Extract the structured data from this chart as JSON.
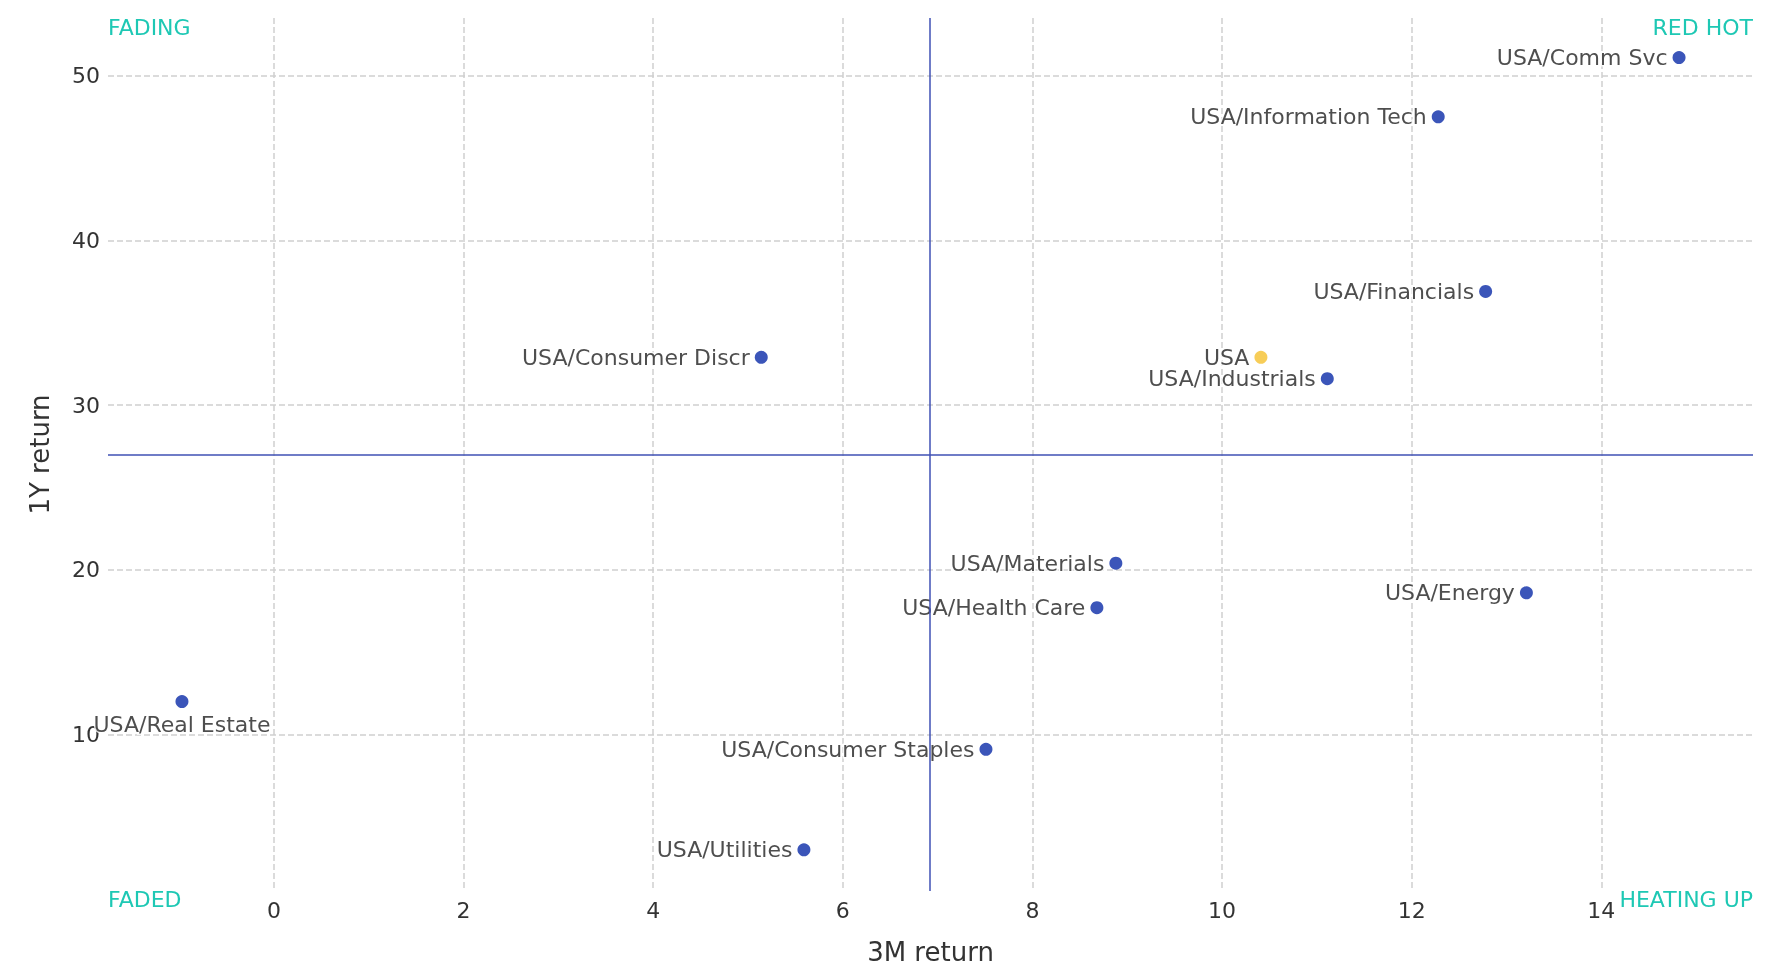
{
  "chart_data": {
    "type": "scatter",
    "xlabel": "3M return",
    "ylabel": "1Y return",
    "xlim": [
      -1.75,
      15.6
    ],
    "xticks": [
      0,
      2,
      4,
      6,
      8,
      10,
      12,
      14
    ],
    "ylim": [
      0.5,
      53.5
    ],
    "yticks": [
      10,
      20,
      30,
      40,
      50
    ],
    "grid": true,
    "marker": "circle",
    "legend": false,
    "series": [
      {
        "name": "USA/Comm Svc",
        "color": "#0a2aa8",
        "x": [
          14.82
        ],
        "values": [
          51.1
        ]
      },
      {
        "name": "USA/Information Tech",
        "color": "#0a2aa8",
        "x": [
          12.28
        ],
        "values": [
          47.5
        ]
      },
      {
        "name": "USA/Financials",
        "color": "#0a2aa8",
        "x": [
          12.78
        ],
        "values": [
          36.9
        ]
      },
      {
        "name": "USA",
        "color": "#f5c12e",
        "x": [
          10.41
        ],
        "values": [
          32.9
        ]
      },
      {
        "name": "USA/Industrials",
        "color": "#0a2aa8",
        "x": [
          11.11
        ],
        "values": [
          31.6
        ]
      },
      {
        "name": "USA/Consumer Discr",
        "color": "#0a2aa8",
        "x": [
          5.14
        ],
        "values": [
          32.9
        ]
      },
      {
        "name": "USA/Materials",
        "color": "#0a2aa8",
        "x": [
          8.88
        ],
        "values": [
          20.4
        ]
      },
      {
        "name": "USA/Health Care",
        "color": "#0a2aa8",
        "x": [
          8.68
        ],
        "values": [
          17.7
        ]
      },
      {
        "name": "USA/Energy",
        "color": "#0a2aa8",
        "x": [
          13.21
        ],
        "values": [
          18.6
        ]
      },
      {
        "name": "USA/Real Estate",
        "color": "#0a2aa8",
        "x": [
          -0.97
        ],
        "values": [
          12.0
        ]
      },
      {
        "name": "USA/Consumer Staples",
        "color": "#0a2aa8",
        "x": [
          7.51
        ],
        "values": [
          9.1
        ]
      },
      {
        "name": "USA/Utilities",
        "color": "#0a2aa8",
        "x": [
          5.59
        ],
        "values": [
          3.0
        ]
      }
    ],
    "ref_lines": [
      {
        "axis": "x",
        "value": 6.92,
        "color": "#3f51b5"
      },
      {
        "axis": "y",
        "value": 27.0,
        "color": "#3f51b5"
      }
    ],
    "annotations": [
      "FADING",
      "RED HOT",
      "FADED",
      "HEATING UP"
    ]
  }
}
